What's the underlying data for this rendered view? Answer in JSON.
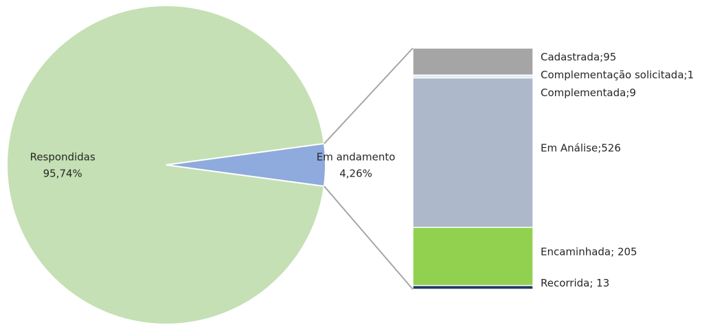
{
  "chart_data": [
    {
      "type": "pie",
      "categories": [
        "Respondidas",
        "Em andamento"
      ],
      "values": [
        95.74,
        4.26
      ],
      "value_labels": [
        "95,74%",
        "4,26%"
      ],
      "colors": [
        "#c5e0b4",
        "#8faadc"
      ]
    },
    {
      "type": "bar",
      "stacked": true,
      "values": [
        95,
        1,
        9,
        526,
        205,
        13
      ],
      "value_labels": [
        "Cadastrada;95",
        "Complementação solicitada;1",
        "Complementada;9",
        "Em Análise;526",
        "Encaminhada; 205",
        "Recorrida; 13"
      ],
      "colors": [
        "#a5a5a5",
        "#f4b183",
        "#dae3f3",
        "#adb9ca",
        "#92d050",
        "#1f3864"
      ]
    }
  ]
}
